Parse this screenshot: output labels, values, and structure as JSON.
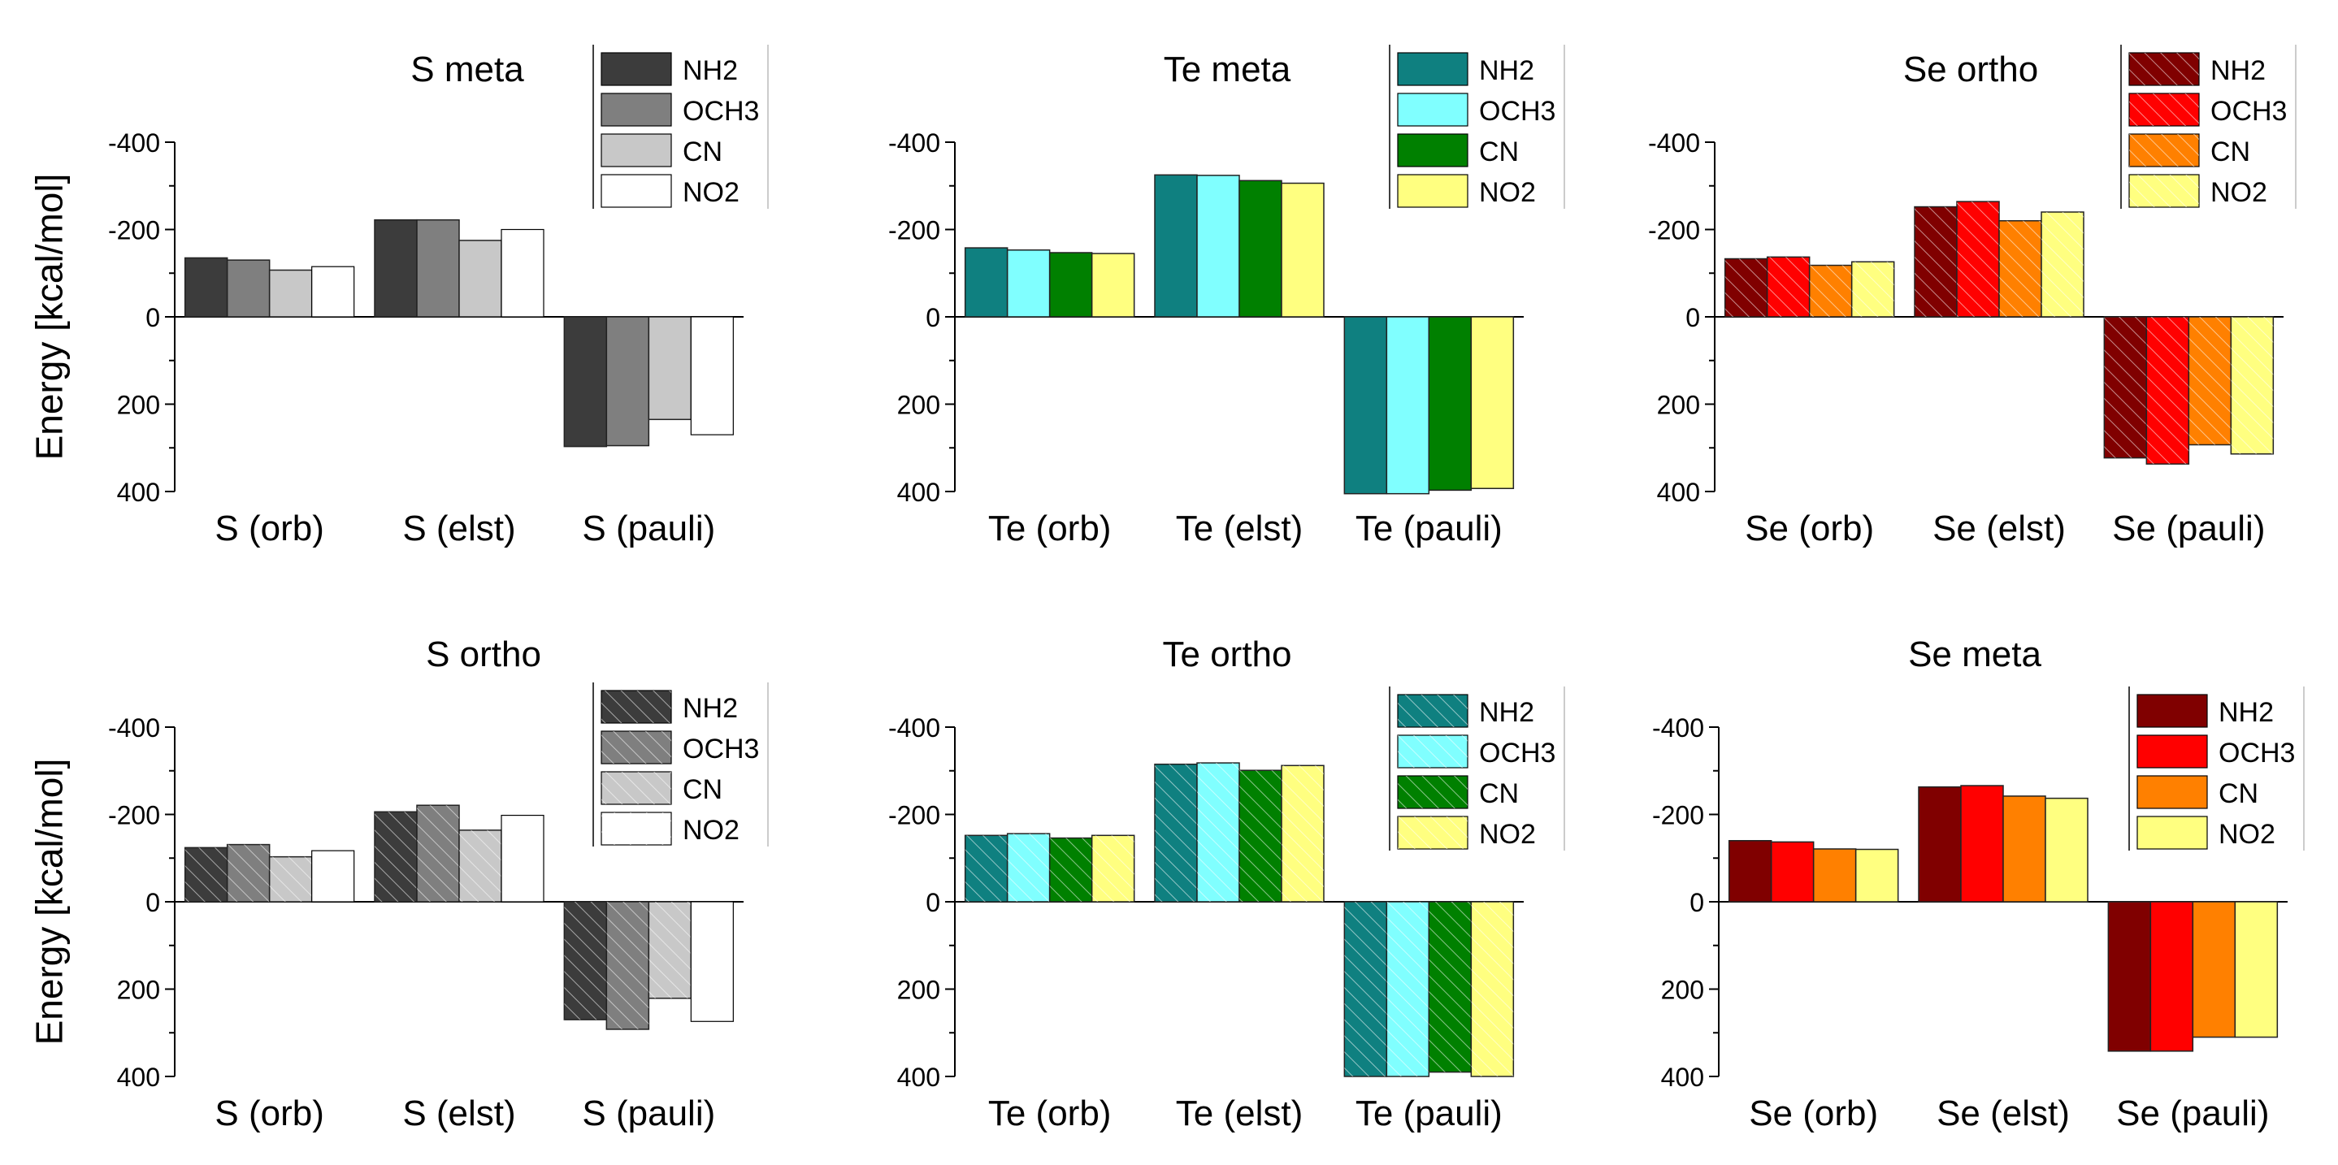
{
  "figure": {
    "ylabel_top": "Energy [kcal/mol]",
    "ylabel_bottom": "Energy [kcal/mol]"
  },
  "chart_data": [
    {
      "id": "s-meta",
      "type": "bar",
      "title": "S meta",
      "categories": [
        "S (orb)",
        "S (elst)",
        "S (pauli)"
      ],
      "ylabel": "Energy [kcal/mol]",
      "ylim": [
        -400,
        400
      ],
      "inverted": true,
      "yticks": [
        -400,
        -200,
        0,
        200,
        400
      ],
      "ytick_labels": [
        "-400",
        "-200",
        "0",
        "200",
        "400"
      ],
      "hatched": false,
      "series": [
        {
          "name": "NH2",
          "color": "#3c3c3c",
          "values": [
            -135,
            -222,
            297
          ]
        },
        {
          "name": "OCH3",
          "color": "#7f7f7f",
          "values": [
            -130,
            -222,
            295
          ]
        },
        {
          "name": "CN",
          "color": "#c8c8c8",
          "values": [
            -107,
            -175,
            235
          ]
        },
        {
          "name": "NO2",
          "color": "#ffffff",
          "values": [
            -115,
            -200,
            270
          ]
        }
      ]
    },
    {
      "id": "te-meta",
      "type": "bar",
      "title": "Te meta",
      "categories": [
        "Te (orb)",
        "Te (elst)",
        "Te (pauli)"
      ],
      "ylabel": "Energy [kcal/mol]",
      "ylim": [
        -400,
        400
      ],
      "inverted": true,
      "yticks": [
        -400,
        -200,
        0,
        200,
        400
      ],
      "ytick_labels": [
        "-400",
        "-200",
        "0",
        "200",
        "400"
      ],
      "hatched": false,
      "series": [
        {
          "name": "NH2",
          "color": "#0f8080",
          "values": [
            -158,
            -325,
            405
          ]
        },
        {
          "name": "OCH3",
          "color": "#80ffff",
          "values": [
            -153,
            -324,
            405
          ]
        },
        {
          "name": "CN",
          "color": "#008000",
          "values": [
            -147,
            -312,
            397
          ]
        },
        {
          "name": "NO2",
          "color": "#ffff80",
          "values": [
            -145,
            -306,
            393
          ]
        }
      ]
    },
    {
      "id": "se-ortho",
      "type": "bar",
      "title": "Se ortho",
      "categories": [
        "Se (orb)",
        "Se (elst)",
        "Se (pauli)"
      ],
      "ylabel": "Energy [kcal/mol]",
      "ylim": [
        -400,
        400
      ],
      "inverted": true,
      "yticks": [
        -400,
        -200,
        0,
        200,
        400
      ],
      "ytick_labels": [
        "-400",
        "-200",
        "0",
        "200",
        "400"
      ],
      "hatched": true,
      "series": [
        {
          "name": "NH2",
          "color": "#800000",
          "values": [
            -133,
            -252,
            323
          ]
        },
        {
          "name": "OCH3",
          "color": "#ff0000",
          "values": [
            -137,
            -264,
            337
          ]
        },
        {
          "name": "CN",
          "color": "#ff8000",
          "values": [
            -118,
            -220,
            293
          ]
        },
        {
          "name": "NO2",
          "color": "#ffff80",
          "values": [
            -126,
            -240,
            314
          ]
        }
      ]
    },
    {
      "id": "s-ortho",
      "type": "bar",
      "title": "S ortho",
      "categories": [
        "S (orb)",
        "S (elst)",
        "S (pauli)"
      ],
      "ylabel": "Energy [kcal/mol]",
      "ylim": [
        -400,
        400
      ],
      "inverted": true,
      "yticks": [
        -400,
        -200,
        0,
        200,
        400
      ],
      "ytick_labels": [
        "-400",
        "-200",
        "0",
        "200",
        "400"
      ],
      "hatched": true,
      "series": [
        {
          "name": "NH2",
          "color": "#3c3c3c",
          "values": [
            -124,
            -206,
            270
          ]
        },
        {
          "name": "OCH3",
          "color": "#7f7f7f",
          "values": [
            -131,
            -221,
            292
          ]
        },
        {
          "name": "CN",
          "color": "#c8c8c8",
          "values": [
            -103,
            -164,
            221
          ]
        },
        {
          "name": "NO2",
          "color": "#ffffff",
          "values": [
            -117,
            -198,
            274
          ]
        }
      ]
    },
    {
      "id": "te-ortho",
      "type": "bar",
      "title": "Te ortho",
      "categories": [
        "Te (orb)",
        "Te (elst)",
        "Te (pauli)"
      ],
      "ylabel": "Energy [kcal/mol]",
      "ylim": [
        -400,
        400
      ],
      "inverted": true,
      "yticks": [
        -400,
        -200,
        0,
        200,
        400
      ],
      "ytick_labels": [
        "-400",
        "-200",
        "0",
        "200",
        "400"
      ],
      "hatched": true,
      "series": [
        {
          "name": "NH2",
          "color": "#0f8080",
          "values": [
            -152,
            -315,
            400
          ]
        },
        {
          "name": "OCH3",
          "color": "#80ffff",
          "values": [
            -156,
            -318,
            400
          ]
        },
        {
          "name": "CN",
          "color": "#008000",
          "values": [
            -146,
            -301,
            390
          ]
        },
        {
          "name": "NO2",
          "color": "#ffff80",
          "values": [
            -152,
            -312,
            400
          ]
        }
      ]
    },
    {
      "id": "se-meta",
      "type": "bar",
      "title": "Se meta",
      "categories": [
        "Se (orb)",
        "Se (elst)",
        "Se (pauli)"
      ],
      "ylabel": "Energy [kcal/mol]",
      "ylim": [
        -400,
        400
      ],
      "inverted": true,
      "yticks": [
        -400,
        -200,
        0,
        200,
        400
      ],
      "ytick_labels": [
        "-400",
        "-200",
        "0",
        "200",
        "400"
      ],
      "hatched": false,
      "series": [
        {
          "name": "NH2",
          "color": "#800000",
          "values": [
            -140,
            -263,
            342
          ]
        },
        {
          "name": "OCH3",
          "color": "#ff0000",
          "values": [
            -137,
            -266,
            342
          ]
        },
        {
          "name": "CN",
          "color": "#ff8000",
          "values": [
            -121,
            -242,
            310
          ]
        },
        {
          "name": "NO2",
          "color": "#ffff80",
          "values": [
            -120,
            -237,
            310
          ]
        }
      ]
    }
  ]
}
